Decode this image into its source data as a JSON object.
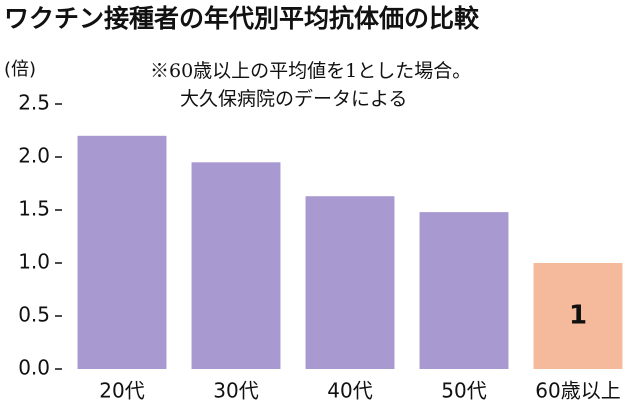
{
  "chart_data": {
    "type": "bar",
    "title": "ワクチン接種者の年代別平均抗体価の比較",
    "y_label": "(倍)",
    "annotations": [
      "※60歳以上の平均値を1とした場合。",
      "大久保病院のデータによる"
    ],
    "categories": [
      "20代",
      "30代",
      "40代",
      "50代",
      "60歳以上"
    ],
    "values": [
      2.2,
      1.95,
      1.63,
      1.48,
      1.0
    ],
    "value_labels": [
      null,
      null,
      null,
      null,
      "1"
    ],
    "colors": [
      "#a899d1",
      "#a899d1",
      "#a899d1",
      "#a899d1",
      "#f5b99b"
    ],
    "ylim": [
      0,
      2.5
    ],
    "yticks": [
      {
        "value": 0,
        "label": "0.0"
      },
      0.5,
      {
        "value": 1,
        "label": "1.0"
      },
      1.5,
      {
        "value": 2,
        "label": "2.0"
      },
      2.5
    ],
    "grid": false
  }
}
